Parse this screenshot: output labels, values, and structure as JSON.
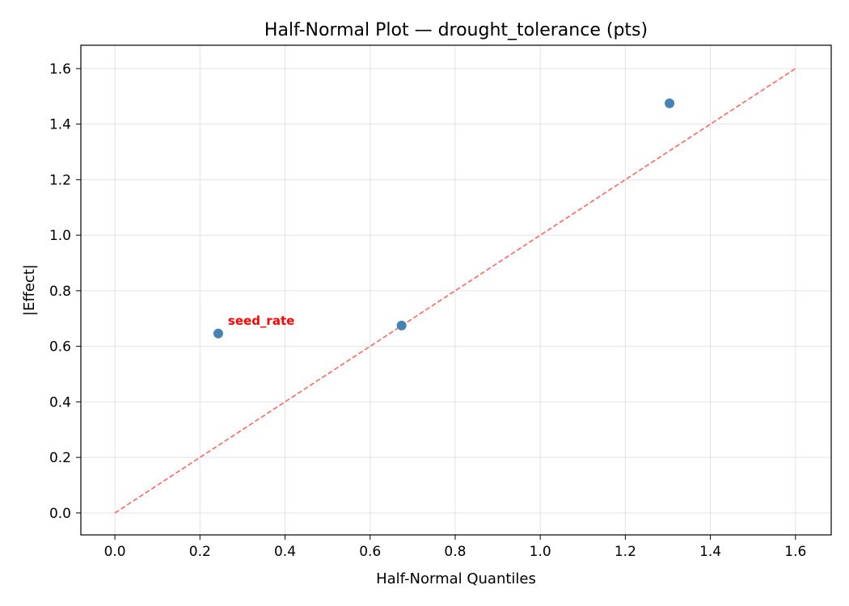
{
  "chart_data": {
    "type": "scatter",
    "title": "Half-Normal Plot — drought_tolerance (pts)",
    "xlabel": "Half-Normal Quantiles",
    "ylabel": "|Effect|",
    "xlim": [
      -0.08,
      1.684
    ],
    "ylim": [
      -0.079,
      1.684
    ],
    "xticks": [
      "0.0",
      "0.2",
      "0.4",
      "0.6",
      "0.8",
      "1.0",
      "1.2",
      "1.4",
      "1.6"
    ],
    "yticks": [
      "0.0",
      "0.2",
      "0.4",
      "0.6",
      "0.8",
      "1.0",
      "1.2",
      "1.4",
      "1.6"
    ],
    "grid": true,
    "points": [
      {
        "x": 0.243,
        "y": 0.646,
        "label": "seed_rate"
      },
      {
        "x": 0.674,
        "y": 0.675,
        "label": ""
      },
      {
        "x": 1.304,
        "y": 1.475,
        "label": ""
      }
    ],
    "reference_line": {
      "x": [
        0,
        1.604
      ],
      "y": [
        0,
        1.604
      ],
      "style": "dashed"
    },
    "colors": {
      "points": "#4682b4",
      "reference_line": "#ff6666",
      "annotation": "#ff0000"
    }
  }
}
